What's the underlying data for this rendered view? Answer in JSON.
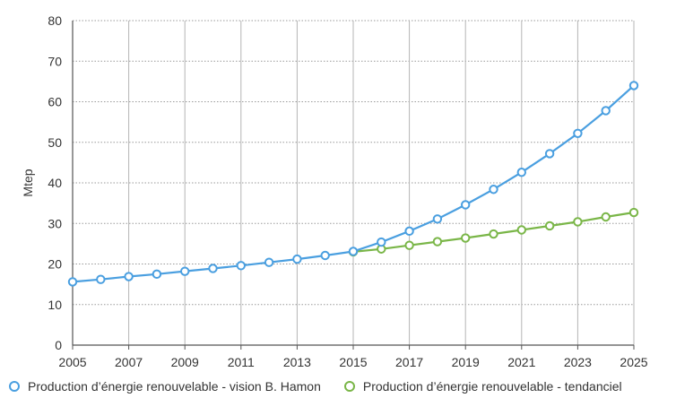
{
  "chart_data": {
    "type": "line",
    "xlabel": "",
    "ylabel": "Mtep",
    "ylim": [
      0,
      80
    ],
    "yticks": [
      0,
      10,
      20,
      30,
      40,
      50,
      60,
      70,
      80
    ],
    "xlim": [
      2005,
      2025
    ],
    "xticks": [
      2005,
      2007,
      2009,
      2011,
      2013,
      2015,
      2017,
      2019,
      2021,
      2023,
      2025
    ],
    "grid": true,
    "legend_position": "bottom",
    "series": [
      {
        "name": "Production d’énergie renouvelable - vision B. Hamon",
        "color": "#4a9fe0",
        "x": [
          2005,
          2006,
          2007,
          2008,
          2009,
          2010,
          2011,
          2012,
          2013,
          2014,
          2015,
          2016,
          2017,
          2018,
          2019,
          2020,
          2021,
          2022,
          2023,
          2024,
          2025
        ],
        "values": [
          15.6,
          16.2,
          16.9,
          17.5,
          18.2,
          18.9,
          19.6,
          20.4,
          21.2,
          22.1,
          23.1,
          25.4,
          28.1,
          31.1,
          34.6,
          38.4,
          42.6,
          47.2,
          52.2,
          57.8,
          64.0
        ]
      },
      {
        "name": "Production d’énergie renouvelable - tendanciel",
        "color": "#7ab648",
        "x": [
          2015,
          2016,
          2017,
          2018,
          2019,
          2020,
          2021,
          2022,
          2023,
          2024,
          2025
        ],
        "values": [
          23.0,
          23.7,
          24.6,
          25.5,
          26.4,
          27.4,
          28.4,
          29.4,
          30.4,
          31.6,
          32.7
        ]
      }
    ]
  }
}
